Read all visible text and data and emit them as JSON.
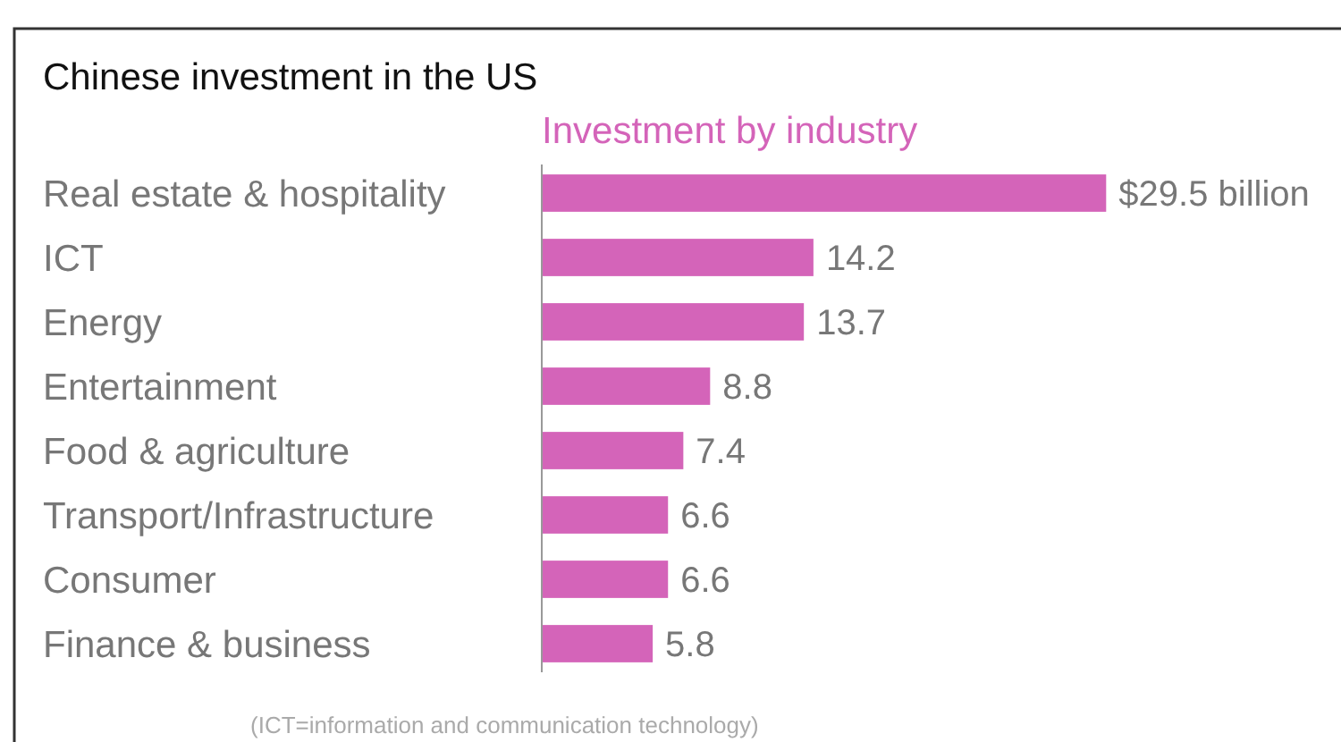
{
  "chart_data": {
    "type": "bar",
    "orientation": "horizontal",
    "title": "Chinese investment in the US",
    "subtitle": "Investment by industry",
    "categories": [
      "Real estate & hospitality",
      "ICT",
      "Energy",
      "Entertainment",
      "Food & agriculture",
      "Transport/Infrastructure",
      "Consumer",
      "Finance & business"
    ],
    "values": [
      29.5,
      14.2,
      13.7,
      8.8,
      7.4,
      6.6,
      6.6,
      5.8
    ],
    "value_labels": [
      "$29.5 billion",
      "14.2",
      "13.7",
      "8.8",
      "7.4",
      "6.6",
      "6.6",
      "5.8"
    ],
    "color": "#d464b9",
    "annotations": [
      "(ICT=information and communication technology)"
    ]
  }
}
